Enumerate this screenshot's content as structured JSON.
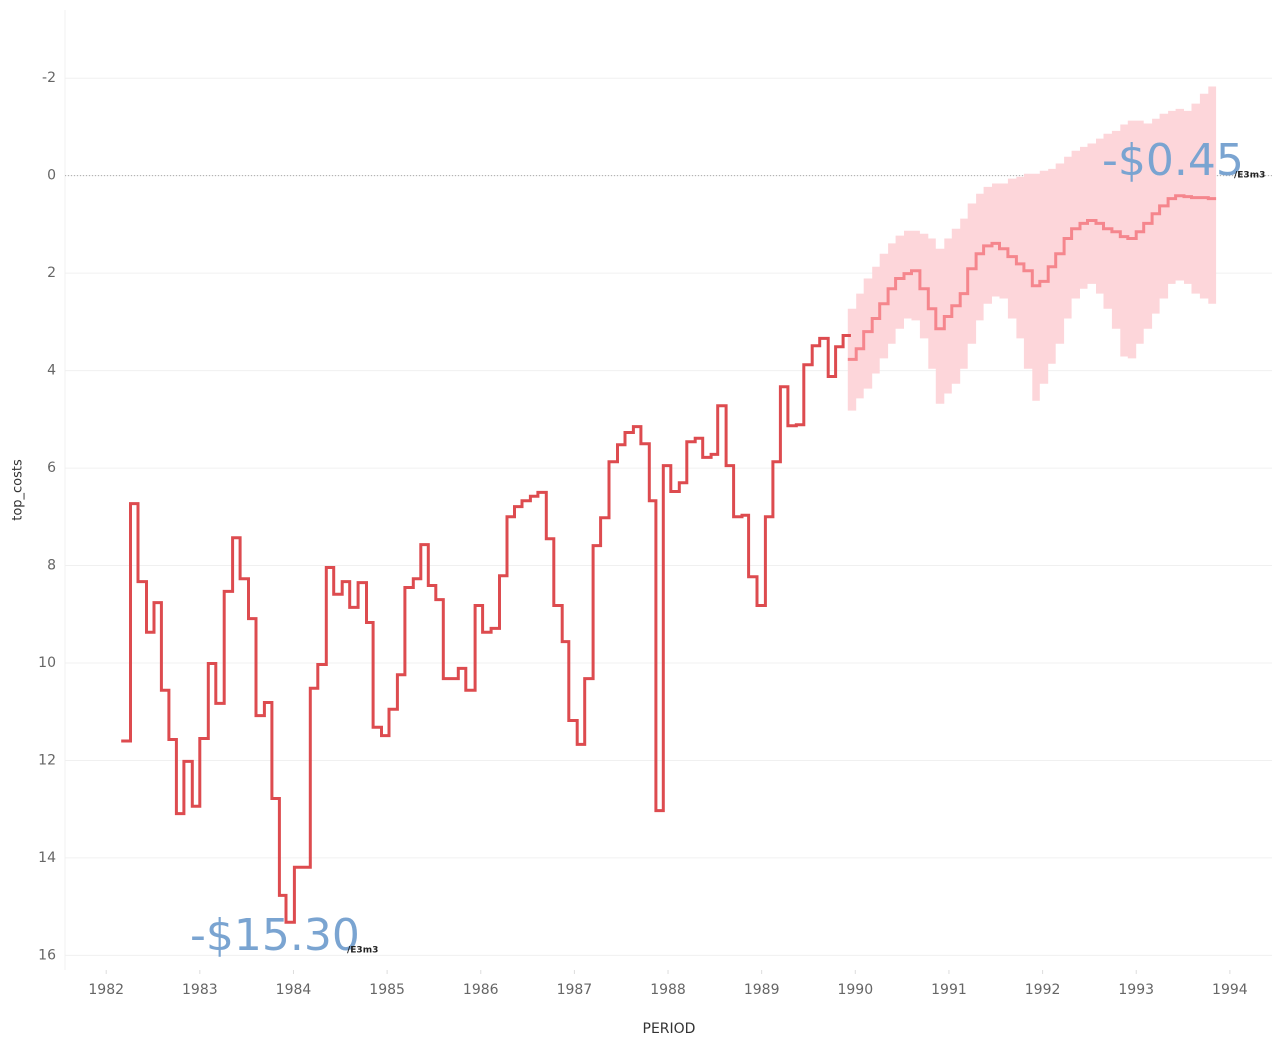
{
  "chart_data": {
    "type": "step",
    "y_axis_label": "top_costs",
    "x_axis_label": "PERIOD",
    "xlim": [
      1981.56,
      1994.45
    ],
    "xticks": [
      1982,
      1983,
      1984,
      1985,
      1986,
      1987,
      1988,
      1989,
      1990,
      1991,
      1992,
      1993,
      1994
    ],
    "ylim": [
      -3.4,
      16.3
    ],
    "y_reversed": true,
    "yticks": [
      -2,
      0,
      2,
      4,
      6,
      8,
      10,
      12,
      14,
      16
    ],
    "grid": true,
    "reference_line": 0,
    "series": [
      {
        "color": "#dd4b4f",
        "x": [
          1982.16,
          1982.26,
          1982.34,
          1982.43,
          1982.51,
          1982.59,
          1982.67,
          1982.75,
          1982.83,
          1982.92,
          1983.0,
          1983.09,
          1983.17,
          1983.26,
          1983.35,
          1983.43,
          1983.52,
          1983.6,
          1983.69,
          1983.77,
          1983.85,
          1983.92,
          1984.01,
          1984.18,
          1984.26,
          1984.35,
          1984.43,
          1984.52,
          1984.6,
          1984.69,
          1984.78,
          1984.85,
          1984.94,
          1985.02,
          1985.11,
          1985.19,
          1985.28,
          1985.36,
          1985.44,
          1985.52,
          1985.6,
          1985.76,
          1985.84,
          1985.94,
          1986.02,
          1986.11,
          1986.2,
          1986.28,
          1986.36,
          1986.44,
          1986.53,
          1986.61,
          1986.7,
          1986.78,
          1986.87,
          1986.94,
          1987.03,
          1987.11,
          1987.2,
          1987.28,
          1987.37,
          1987.46,
          1987.54,
          1987.63,
          1987.71,
          1987.8,
          1987.87,
          1987.95,
          1988.03,
          1988.12,
          1988.2,
          1988.29,
          1988.37,
          1988.46,
          1988.53,
          1988.62,
          1988.7,
          1988.79,
          1988.86,
          1988.95,
          1989.04,
          1989.12,
          1989.2,
          1989.28,
          1989.37,
          1989.45,
          1989.54,
          1989.62,
          1989.71,
          1989.79,
          1989.87
        ],
        "values": [
          11.6,
          6.73,
          8.33,
          9.37,
          8.76,
          10.56,
          11.57,
          13.09,
          12.02,
          12.94,
          11.55,
          10.01,
          10.83,
          8.53,
          7.43,
          8.27,
          9.09,
          11.08,
          10.81,
          12.78,
          14.77,
          15.32,
          14.19,
          10.52,
          10.03,
          8.04,
          8.59,
          8.33,
          8.86,
          8.35,
          9.17,
          11.32,
          11.49,
          10.95,
          10.24,
          8.45,
          8.27,
          7.57,
          8.41,
          8.7,
          10.32,
          10.11,
          10.56,
          8.82,
          9.37,
          9.29,
          8.21,
          7.0,
          6.79,
          6.67,
          6.58,
          6.5,
          7.45,
          8.82,
          9.56,
          11.18,
          11.67,
          10.32,
          7.59,
          7.02,
          5.87,
          5.52,
          5.27,
          5.15,
          5.5,
          6.67,
          13.03,
          5.95,
          6.48,
          6.3,
          5.46,
          5.39,
          5.78,
          5.72,
          4.72,
          5.95,
          7.0,
          6.97,
          8.23,
          8.82,
          7.0,
          5.87,
          4.33,
          5.13,
          5.11,
          3.88,
          3.49,
          3.34,
          4.12,
          3.51,
          3.28
        ]
      },
      {
        "color": "#f5868d",
        "band_color": "#fdd6da",
        "x": [
          1989.92,
          1990.01,
          1990.09,
          1990.18,
          1990.26,
          1990.35,
          1990.43,
          1990.52,
          1990.6,
          1990.69,
          1990.78,
          1990.86,
          1990.95,
          1991.03,
          1991.12,
          1991.2,
          1991.29,
          1991.37,
          1991.46,
          1991.54,
          1991.63,
          1991.72,
          1991.8,
          1991.89,
          1991.97,
          1992.06,
          1992.14,
          1992.23,
          1992.31,
          1992.4,
          1992.48,
          1992.57,
          1992.65,
          1992.74,
          1992.83,
          1992.91,
          1993.0,
          1993.08,
          1993.17,
          1993.25,
          1993.34,
          1993.42,
          1993.51,
          1993.59,
          1993.68,
          1993.77
        ],
        "values": [
          3.77,
          3.55,
          3.2,
          2.93,
          2.63,
          2.32,
          2.11,
          2.01,
          1.95,
          2.32,
          2.73,
          3.14,
          2.89,
          2.67,
          2.42,
          1.91,
          1.6,
          1.44,
          1.39,
          1.5,
          1.66,
          1.81,
          1.95,
          2.26,
          2.17,
          1.87,
          1.6,
          1.29,
          1.09,
          0.98,
          0.92,
          0.98,
          1.09,
          1.15,
          1.25,
          1.29,
          1.15,
          0.98,
          0.78,
          0.62,
          0.47,
          0.41,
          0.43,
          0.45,
          0.45,
          0.47
        ],
        "lower": [
          2.73,
          2.42,
          2.11,
          1.87,
          1.6,
          1.39,
          1.23,
          1.13,
          1.13,
          1.19,
          1.29,
          1.5,
          1.29,
          1.09,
          0.88,
          0.57,
          0.37,
          0.23,
          0.16,
          0.16,
          0.06,
          0.02,
          -0.04,
          -0.04,
          -0.1,
          -0.14,
          -0.25,
          -0.39,
          -0.51,
          -0.59,
          -0.66,
          -0.76,
          -0.86,
          -0.92,
          -1.05,
          -1.13,
          -1.13,
          -1.07,
          -1.17,
          -1.27,
          -1.33,
          -1.37,
          -1.33,
          -1.48,
          -1.68,
          -1.83
        ],
        "upper": [
          4.82,
          4.57,
          4.37,
          4.06,
          3.75,
          3.45,
          3.14,
          2.93,
          2.97,
          3.34,
          3.96,
          4.68,
          4.47,
          4.27,
          3.96,
          3.45,
          2.97,
          2.63,
          2.48,
          2.52,
          2.93,
          3.34,
          3.96,
          4.62,
          4.27,
          3.86,
          3.45,
          2.93,
          2.52,
          2.32,
          2.22,
          2.42,
          2.73,
          3.14,
          3.71,
          3.75,
          3.45,
          3.14,
          2.83,
          2.52,
          2.22,
          2.15,
          2.22,
          2.42,
          2.52,
          2.63
        ]
      }
    ],
    "annotations": [
      {
        "text": "-$15.30",
        "unit": "/E3m3"
      },
      {
        "text": "-$0.45",
        "unit": "/E3m3"
      }
    ]
  }
}
